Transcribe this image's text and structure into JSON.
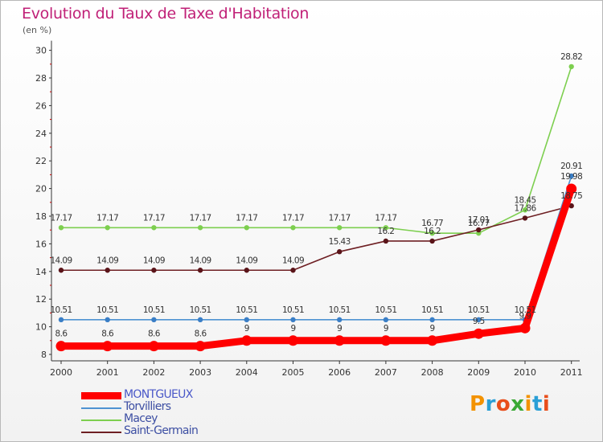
{
  "header": {
    "title": "Evolution du Taux de Taxe d'Habitation",
    "unit": "(en %)"
  },
  "brand": {
    "text": "Proxiti",
    "colors": [
      "#f39200",
      "#2a9fd6",
      "#e84e1b",
      "#3aa935",
      "#f39200",
      "#2a9fd6",
      "#e84e1b"
    ]
  },
  "chart_data": {
    "type": "line",
    "title": "Evolution du Taux de Taxe d'Habitation",
    "ylabel": "(en %)",
    "xlabel": "",
    "x": [
      "2000",
      "2001",
      "2002",
      "2003",
      "2004",
      "2005",
      "2006",
      "2007",
      "2008",
      "2009",
      "2010",
      "2011"
    ],
    "ylim": [
      8,
      30
    ],
    "yticks": [
      8,
      10,
      12,
      14,
      16,
      18,
      20,
      22,
      24,
      26,
      28,
      30
    ],
    "grid": false,
    "legend_position": "bottom-left",
    "series": [
      {
        "name": "MONTGUEUX",
        "color": "#ff0000",
        "values": [
          8.6,
          8.6,
          8.6,
          8.6,
          9,
          9,
          9,
          9,
          9,
          9.5,
          9.9,
          19.98
        ],
        "labels": [
          "8.6",
          "8.6",
          "8.6",
          "8.6",
          "9",
          "9",
          "9",
          "9",
          "9",
          "9.5",
          "9.9",
          "19.98"
        ]
      },
      {
        "name": "Torvilliers",
        "color": "#4f93d2",
        "values": [
          10.51,
          10.51,
          10.51,
          10.51,
          10.51,
          10.51,
          10.51,
          10.51,
          10.51,
          10.51,
          10.51,
          20.91
        ],
        "labels": [
          "10.51",
          "10.51",
          "10.51",
          "10.51",
          "10.51",
          "10.51",
          "10.51",
          "10.51",
          "10.51",
          "10.51",
          "10.51",
          "20.91"
        ]
      },
      {
        "name": "Macey",
        "color": "#7dcf4f",
        "values": [
          17.17,
          17.17,
          17.17,
          17.17,
          17.17,
          17.17,
          17.17,
          17.17,
          16.77,
          16.77,
          18.45,
          28.82
        ],
        "labels": [
          "17.17",
          "17.17",
          "17.17",
          "17.17",
          "17.17",
          "17.17",
          "17.17",
          "17.17",
          "16.77",
          "16.77",
          "18.45",
          "28.82"
        ]
      },
      {
        "name": "Saint-Germain",
        "color": "#6e1f23",
        "values": [
          14.09,
          14.09,
          14.09,
          14.09,
          14.09,
          14.09,
          15.43,
          16.2,
          16.2,
          17.01,
          17.86,
          18.75
        ],
        "labels": [
          "14.09",
          "14.09",
          "14.09",
          "14.09",
          "14.09",
          "14.09",
          "15.43",
          "16.2",
          "16.2",
          "17.01",
          "17.86",
          "18.75"
        ]
      }
    ]
  }
}
